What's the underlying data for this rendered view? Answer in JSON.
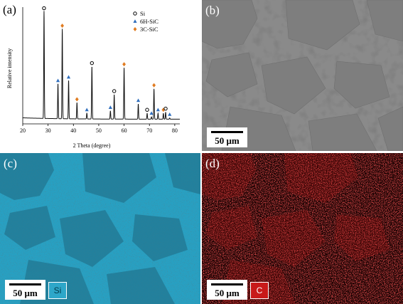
{
  "panels": {
    "a": {
      "letter": "(a)",
      "chart_data": {
        "type": "line",
        "title": "",
        "xlabel": "2 Theta (degree)",
        "ylabel": "Relative intensity",
        "xlim": [
          20,
          82
        ],
        "ylim": [
          0,
          100
        ],
        "xticks": [
          20,
          30,
          40,
          50,
          60,
          70,
          80
        ],
        "yticks": [],
        "grid": false,
        "legend_position": "top-right",
        "legend": [
          {
            "label": "Si",
            "marker": "open-circle",
            "color": "#000000"
          },
          {
            "label": "6H-SiC",
            "marker": "triangle",
            "color": "#2f6ebd"
          },
          {
            "label": "3C-SiC",
            "marker": "diamond",
            "color": "#e07b20"
          }
        ],
        "baseline": 4,
        "peaks": [
          {
            "x": 28.4,
            "y": 96,
            "phase": "Si"
          },
          {
            "x": 33.9,
            "y": 34,
            "phase": "6H-SiC"
          },
          {
            "x": 35.6,
            "y": 81,
            "phase": "3C-SiC"
          },
          {
            "x": 38.1,
            "y": 37,
            "phase": "6H-SiC"
          },
          {
            "x": 41.4,
            "y": 18,
            "phase": "3C-SiC"
          },
          {
            "x": 45.3,
            "y": 9,
            "phase": "6H-SiC"
          },
          {
            "x": 47.3,
            "y": 49,
            "phase": "Si"
          },
          {
            "x": 54.6,
            "y": 11,
            "phase": "6H-SiC"
          },
          {
            "x": 56.1,
            "y": 25,
            "phase": "Si"
          },
          {
            "x": 60.0,
            "y": 48,
            "phase": "3C-SiC"
          },
          {
            "x": 65.6,
            "y": 17,
            "phase": "6H-SiC"
          },
          {
            "x": 69.1,
            "y": 9,
            "phase": "Si"
          },
          {
            "x": 70.8,
            "y": 6,
            "phase": "6H-SiC"
          },
          {
            "x": 71.8,
            "y": 30,
            "phase": "3C-SiC"
          },
          {
            "x": 73.4,
            "y": 9,
            "phase": "6H-SiC"
          },
          {
            "x": 75.5,
            "y": 9,
            "phase": "3C-SiC"
          },
          {
            "x": 76.4,
            "y": 10,
            "phase": "Si"
          },
          {
            "x": 78.0,
            "y": 5,
            "phase": "6H-SiC"
          }
        ]
      }
    },
    "b": {
      "letter": "(b)",
      "scalebar": "50 μm",
      "image": "SEM micrograph"
    },
    "c": {
      "letter": "(c)",
      "scalebar": "50 μm",
      "element": "Si",
      "color": "#2ea7c9"
    },
    "d": {
      "letter": "(d)",
      "scalebar": "50 μm",
      "element": "C",
      "color": "#c81a1a"
    }
  }
}
